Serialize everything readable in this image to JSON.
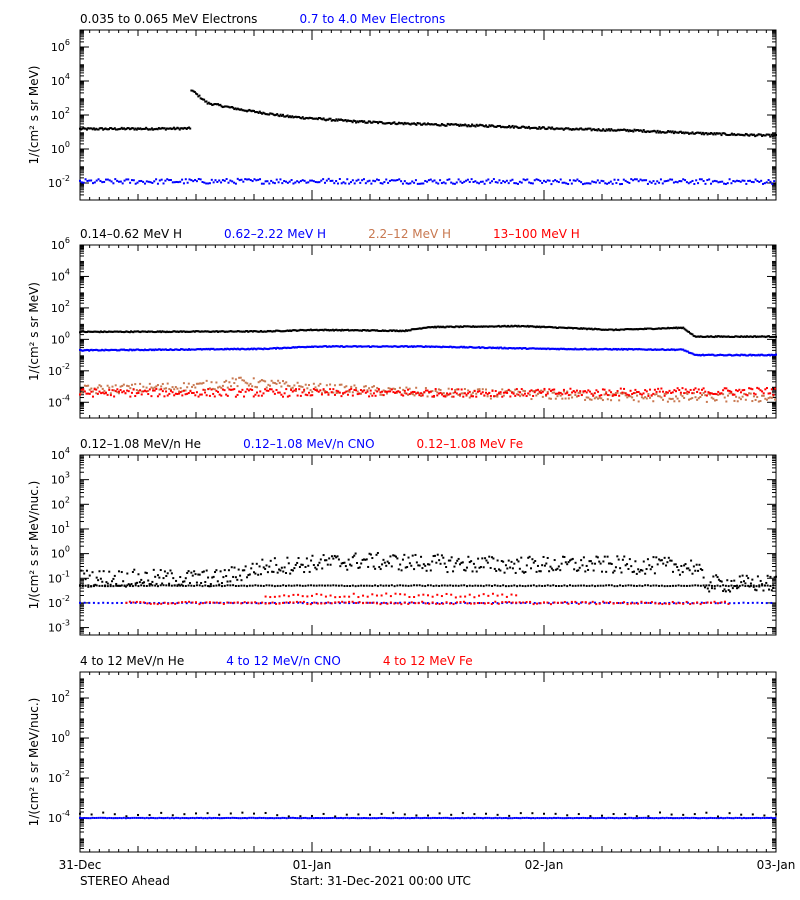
{
  "colors": {
    "black": "#000000",
    "blue": "#0000ff",
    "tan": "#c87850",
    "red": "#ff0000"
  },
  "footer": {
    "spacecraft": "STEREO Ahead",
    "start": "Start: 31-Dec-2021 00:00 UTC"
  },
  "chart_data": [
    {
      "type": "scatter",
      "scale": "log",
      "ylabel": "1/(cm² s sr MeV)",
      "ylim": [
        0.001,
        10000000
      ],
      "yticks": [
        {
          "exp": "-2",
          "v": 0.01
        },
        {
          "exp": "0",
          "v": 1
        },
        {
          "exp": "2",
          "v": 100
        },
        {
          "exp": "4",
          "v": 10000
        },
        {
          "exp": "6",
          "v": 1000000
        }
      ],
      "xlim": [
        0,
        3
      ],
      "legend": [
        {
          "label": "0.035 to 0.065 MeV Electrons",
          "color": "#000000"
        },
        {
          "label": "0.7 to 4.0 Mev Electrons",
          "color": "#0000ff"
        }
      ],
      "series": [
        {
          "color": "#000000",
          "spread": 0.06,
          "step": 0.005,
          "points": [
            [
              0,
              15
            ],
            [
              0.48,
              16
            ],
            [
              0.48,
              3000
            ],
            [
              0.55,
              500
            ],
            [
              0.7,
              200
            ],
            [
              0.9,
              80
            ],
            [
              1.2,
              40
            ],
            [
              1.5,
              28
            ],
            [
              1.8,
              22
            ],
            [
              2.1,
              15
            ],
            [
              2.4,
              12
            ],
            [
              2.7,
              8
            ],
            [
              3,
              6
            ]
          ]
        },
        {
          "color": "#0000ff",
          "spread": 0.15,
          "step": 0.008,
          "points": [
            [
              0,
              0.012
            ],
            [
              1,
              0.013
            ],
            [
              2,
              0.012
            ],
            [
              3,
              0.012
            ]
          ]
        }
      ]
    },
    {
      "type": "scatter",
      "scale": "log",
      "ylabel": "1/(cm² s sr MeV)",
      "ylim": [
        1e-05,
        1000000
      ],
      "yticks": [
        {
          "exp": "-4",
          "v": 0.0001
        },
        {
          "exp": "-2",
          "v": 0.01
        },
        {
          "exp": "0",
          "v": 1
        },
        {
          "exp": "2",
          "v": 100
        },
        {
          "exp": "4",
          "v": 10000
        },
        {
          "exp": "6",
          "v": 1000000
        }
      ],
      "xlim": [
        0,
        3
      ],
      "legend": [
        {
          "label": "0.14–0.62 MeV H",
          "color": "#000000"
        },
        {
          "label": "0.62–2.22 MeV H",
          "color": "#0000ff"
        },
        {
          "label": "2.2–12 MeV H",
          "color": "#c87850"
        },
        {
          "label": "13–100 MeV H",
          "color": "#ff0000"
        }
      ],
      "series": [
        {
          "color": "#000000",
          "spread": 0.03,
          "step": 0.005,
          "points": [
            [
              0,
              3
            ],
            [
              0.8,
              3.2
            ],
            [
              1.0,
              4
            ],
            [
              1.4,
              3.5
            ],
            [
              1.5,
              6
            ],
            [
              1.9,
              7
            ],
            [
              2.3,
              4
            ],
            [
              2.6,
              5.5
            ],
            [
              2.65,
              1.5
            ],
            [
              3,
              1.5
            ]
          ]
        },
        {
          "color": "#0000ff",
          "spread": 0.03,
          "step": 0.005,
          "points": [
            [
              0,
              0.2
            ],
            [
              0.8,
              0.25
            ],
            [
              1.0,
              0.35
            ],
            [
              1.5,
              0.35
            ],
            [
              2.0,
              0.25
            ],
            [
              2.6,
              0.22
            ],
            [
              2.65,
              0.1
            ],
            [
              3,
              0.1
            ]
          ]
        },
        {
          "color": "#c87850",
          "spread": 0.3,
          "step": 0.007,
          "points": [
            [
              0,
              0.0006
            ],
            [
              0.5,
              0.001
            ],
            [
              0.7,
              0.002
            ],
            [
              1.0,
              0.0008
            ],
            [
              1.5,
              0.0004
            ],
            [
              2.0,
              0.0003
            ],
            [
              2.5,
              0.0002
            ],
            [
              3,
              0.0002
            ]
          ]
        },
        {
          "color": "#ff0000",
          "spread": 0.25,
          "step": 0.007,
          "points": [
            [
              0,
              0.0004
            ],
            [
              1,
              0.0004
            ],
            [
              2,
              0.0004
            ],
            [
              3,
              0.0005
            ]
          ]
        }
      ]
    },
    {
      "type": "scatter",
      "scale": "log",
      "ylabel": "1/(cm² s sr MeV/nuc.)",
      "ylim": [
        0.0005,
        10000
      ],
      "yticks": [
        {
          "exp": "-3",
          "v": 0.001
        },
        {
          "exp": "-2",
          "v": 0.01
        },
        {
          "exp": "-1",
          "v": 0.1
        },
        {
          "exp": "0",
          "v": 1
        },
        {
          "exp": "1",
          "v": 10
        },
        {
          "exp": "2",
          "v": 100
        },
        {
          "exp": "3",
          "v": 1000
        },
        {
          "exp": "4",
          "v": 10000
        }
      ],
      "xlim": [
        0,
        3
      ],
      "legend": [
        {
          "label": "0.12–1.08 MeV/n He",
          "color": "#000000"
        },
        {
          "label": "0.12–1.08 MeV/n CNO",
          "color": "#0000ff"
        },
        {
          "label": "0.12–1.08 MeV Fe",
          "color": "#ff0000"
        }
      ],
      "series": [
        {
          "color": "#000000",
          "spread": 0.35,
          "step": 0.006,
          "points": [
            [
              0,
              0.1
            ],
            [
              0.6,
              0.1
            ],
            [
              0.8,
              0.3
            ],
            [
              1.2,
              0.5
            ],
            [
              1.8,
              0.35
            ],
            [
              2.3,
              0.35
            ],
            [
              2.65,
              0.3
            ],
            [
              2.7,
              0.06
            ],
            [
              3,
              0.06
            ]
          ]
        },
        {
          "color": "#000000",
          "spread": 0.02,
          "step": 0.012,
          "points": [
            [
              0,
              0.05
            ],
            [
              3,
              0.05
            ]
          ]
        },
        {
          "color": "#0000ff",
          "spread": 0.01,
          "step": 0.02,
          "points": [
            [
              0,
              0.01
            ],
            [
              3,
              0.01
            ]
          ]
        },
        {
          "color": "#ff0000",
          "spread": 0.05,
          "step": 0.015,
          "points": [
            [
              0.2,
              0.01
            ],
            [
              2.8,
              0.01
            ]
          ]
        },
        {
          "color": "#ff0000",
          "spread": 0.08,
          "step": 0.02,
          "points": [
            [
              0.8,
              0.02
            ],
            [
              1.9,
              0.02
            ]
          ]
        }
      ]
    },
    {
      "type": "scatter",
      "scale": "log",
      "ylabel": "1/(cm² s sr MeV/nuc.)",
      "ylim": [
        2e-06,
        2000
      ],
      "yticks": [
        {
          "exp": "-4",
          "v": 0.0001
        },
        {
          "exp": "-2",
          "v": 0.01
        },
        {
          "exp": "0",
          "v": 1
        },
        {
          "exp": "2",
          "v": 100
        }
      ],
      "xlim": [
        0,
        3
      ],
      "legend": [
        {
          "label": "4 to 12 MeV/n He",
          "color": "#000000"
        },
        {
          "label": "4 to 12 MeV/n CNO",
          "color": "#0000ff"
        },
        {
          "label": "4 to 12 MeV Fe",
          "color": "#ff0000"
        }
      ],
      "series": [
        {
          "color": "#0000ff",
          "spread": 0.01,
          "step": 0.009,
          "points": [
            [
              0,
              0.0001
            ],
            [
              3,
              0.0001
            ]
          ]
        },
        {
          "color": "#000000",
          "spread": 0.1,
          "step": 0.05,
          "points": [
            [
              0,
              0.00015
            ],
            [
              3,
              0.00015
            ]
          ]
        }
      ]
    }
  ],
  "xaxis": {
    "ticks": [
      {
        "label": "31-Dec",
        "v": 0
      },
      {
        "label": "01-Jan",
        "v": 1
      },
      {
        "label": "02-Jan",
        "v": 2
      },
      {
        "label": "03-Jan",
        "v": 3
      }
    ]
  }
}
